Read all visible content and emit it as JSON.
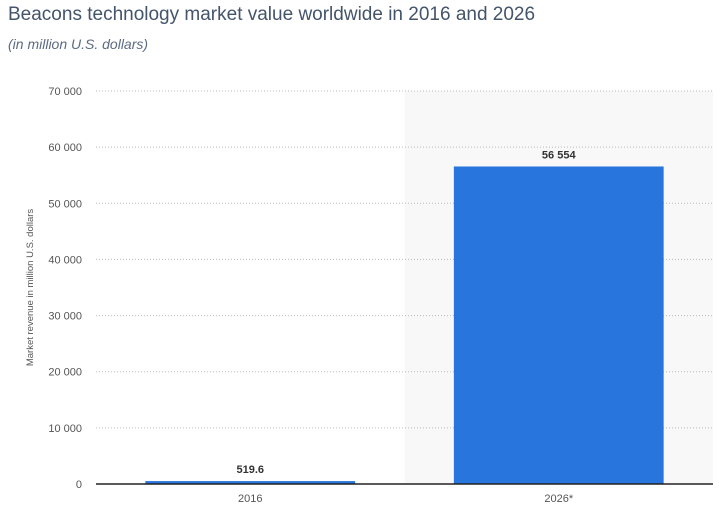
{
  "chart_data": {
    "type": "bar",
    "title": "Beacons technology market value worldwide in 2016 and 2026",
    "subtitle": "(in million U.S. dollars)",
    "ylabel": "Market revenue in million U.S. dollars",
    "xlabel": "",
    "categories": [
      "2016",
      "2026*"
    ],
    "values": [
      519.6,
      56554
    ],
    "value_labels": [
      "519.6",
      "56 554"
    ],
    "ylim": [
      0,
      70000
    ],
    "yticks": [
      0,
      10000,
      20000,
      30000,
      40000,
      50000,
      60000,
      70000
    ],
    "ytick_labels": [
      "0",
      "10 000",
      "20 000",
      "30 000",
      "40 000",
      "50 000",
      "60 000",
      "70 000"
    ],
    "grid": true,
    "forecast_shaded_category": "2026*",
    "colors": {
      "bar": "#2775dd",
      "shade": "#f8f8f8",
      "title": "#44546a"
    }
  }
}
